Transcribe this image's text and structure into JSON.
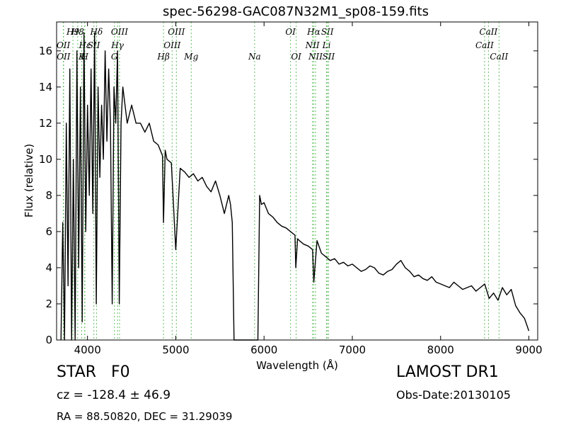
{
  "chart_data": {
    "type": "line",
    "title": "spec-56298-GAC087N32M1_sp08-159.fits",
    "xlabel": "Wavelength (Å)",
    "ylabel": "Flux (relative)",
    "xlim": [
      3650,
      9100
    ],
    "ylim": [
      0,
      17.6
    ],
    "x_ticks": [
      4000,
      5000,
      6000,
      7000,
      8000,
      9000
    ],
    "y_ticks": [
      0,
      2,
      4,
      6,
      8,
      10,
      12,
      14,
      16
    ],
    "grid": false,
    "line_color": "#000000",
    "marker_line_color": "#5fbf5f",
    "series": [
      {
        "x": [
          3700,
          3720,
          3740,
          3760,
          3780,
          3800,
          3820,
          3840,
          3860,
          3880,
          3900,
          3920,
          3940,
          3960,
          3980,
          4000,
          4020,
          4040,
          4060,
          4080,
          4100,
          4120,
          4140,
          4160,
          4180,
          4200,
          4220,
          4240,
          4260,
          4280,
          4300,
          4320,
          4340,
          4360,
          4380,
          4400,
          4450,
          4500,
          4550,
          4600,
          4650,
          4700,
          4750,
          4800,
          4850,
          4861,
          4880,
          4900,
          4950,
          5000,
          5050,
          5100,
          5150,
          5200,
          5250,
          5300,
          5350,
          5400,
          5450,
          5500,
          5550,
          5600,
          5620,
          5640,
          5660,
          5700,
          5800,
          5900,
          5930,
          5950,
          5970,
          6000,
          6050,
          6100,
          6150,
          6200,
          6250,
          6300,
          6350,
          6360,
          6380,
          6400,
          6450,
          6500,
          6550,
          6563,
          6600,
          6650,
          6700,
          6750,
          6800,
          6850,
          6900,
          6950,
          7000,
          7050,
          7100,
          7150,
          7200,
          7250,
          7300,
          7350,
          7400,
          7450,
          7500,
          7550,
          7600,
          7650,
          7700,
          7750,
          7800,
          7850,
          7900,
          7950,
          8000,
          8050,
          8100,
          8150,
          8200,
          8250,
          8300,
          8350,
          8400,
          8450,
          8500,
          8550,
          8600,
          8650,
          8700,
          8750,
          8800,
          8850,
          8900,
          8950,
          9000
        ],
        "y": [
          0,
          6.5,
          0,
          12,
          3,
          15,
          0,
          10,
          0,
          16,
          4,
          14,
          1,
          17,
          6,
          13,
          8,
          15,
          7,
          17,
          2,
          14,
          9,
          13,
          10,
          16,
          11,
          15,
          12,
          2,
          14,
          12,
          16,
          2,
          12,
          14,
          12,
          13,
          12,
          12,
          11.5,
          12,
          11,
          10.8,
          10.2,
          6.5,
          10.5,
          10,
          9.8,
          5,
          9.5,
          9.3,
          9,
          9.2,
          8.8,
          9,
          8.5,
          8.2,
          8.8,
          8,
          7,
          8,
          7.5,
          6.5,
          0,
          0,
          0,
          0,
          0,
          8,
          7.5,
          7.6,
          7,
          6.8,
          6.5,
          6.3,
          6.2,
          6,
          5.8,
          4,
          5.6,
          5.5,
          5.3,
          5.2,
          5,
          3.2,
          5.5,
          4.8,
          4.6,
          4.4,
          4.5,
          4.2,
          4.3,
          4.1,
          4.2,
          4,
          3.8,
          3.9,
          4.1,
          4,
          3.7,
          3.6,
          3.8,
          3.9,
          4.2,
          4.4,
          4,
          3.8,
          3.5,
          3.6,
          3.4,
          3.3,
          3.5,
          3.2,
          3.1,
          3,
          2.9,
          3.2,
          3,
          2.8,
          2.9,
          3,
          2.7,
          2.9,
          3.1,
          2.3,
          2.6,
          2.2,
          2.9,
          2.5,
          2.8,
          1.9,
          1.5,
          1.2,
          0.5
        ]
      }
    ],
    "spectral_lines": [
      {
        "label": "H9",
        "wavelength": 3835,
        "row": 0
      },
      {
        "label": "H8",
        "wavelength": 3889,
        "row": 0
      },
      {
        "label": "Hδ",
        "wavelength": 4102,
        "row": 0
      },
      {
        "label": "OIII",
        "wavelength": 4363,
        "row": 0
      },
      {
        "label": "OIII",
        "wavelength": 5007,
        "row": 0
      },
      {
        "label": "OI",
        "wavelength": 6300,
        "row": 0
      },
      {
        "label": "Hα",
        "wavelength": 6563,
        "row": 0
      },
      {
        "label": "SII",
        "wavelength": 6717,
        "row": 0
      },
      {
        "label": "CaII",
        "wavelength": 8542,
        "row": 0
      },
      {
        "label": "OII",
        "wavelength": 3727,
        "row": 1
      },
      {
        "label": "Hε",
        "wavelength": 3970,
        "row": 1
      },
      {
        "label": "SII",
        "wavelength": 4072,
        "row": 1
      },
      {
        "label": "Hγ",
        "wavelength": 4340,
        "row": 1
      },
      {
        "label": "OIII",
        "wavelength": 4959,
        "row": 1
      },
      {
        "label": "NII",
        "wavelength": 6548,
        "row": 1
      },
      {
        "label": "Li",
        "wavelength": 6708,
        "row": 1
      },
      {
        "label": "CaII",
        "wavelength": 8498,
        "row": 1
      },
      {
        "label": "OII",
        "wavelength": 3729,
        "row": 2
      },
      {
        "label": "K",
        "wavelength": 3934,
        "row": 2
      },
      {
        "label": "H",
        "wavelength": 3968,
        "row": 2
      },
      {
        "label": "G",
        "wavelength": 4305,
        "row": 2
      },
      {
        "label": "Hβ",
        "wavelength": 4861,
        "row": 2
      },
      {
        "label": "Mg",
        "wavelength": 5175,
        "row": 2
      },
      {
        "label": "Na",
        "wavelength": 5893,
        "row": 2
      },
      {
        "label": "OI",
        "wavelength": 6364,
        "row": 2
      },
      {
        "label": "NII",
        "wavelength": 6583,
        "row": 2
      },
      {
        "label": "SII",
        "wavelength": 6731,
        "row": 2
      },
      {
        "label": "CaII",
        "wavelength": 8662,
        "row": 2
      }
    ]
  },
  "info": {
    "object_class": "STAR",
    "subclass": "F0",
    "cz_label": "cz = -128.4",
    "cz_error": "± 46.9",
    "survey": "LAMOST DR1",
    "obs_date": "Obs-Date:20130105",
    "coords": "RA = 88.50820, DEC = 31.29039"
  }
}
